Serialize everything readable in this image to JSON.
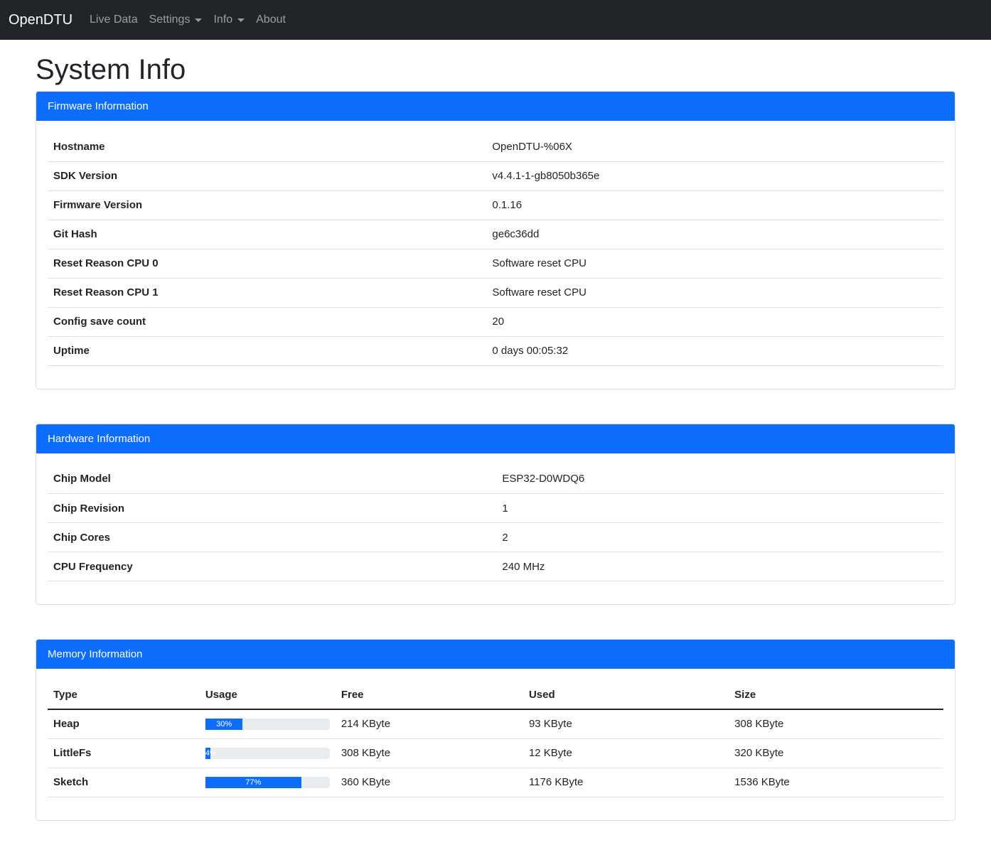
{
  "nav": {
    "brand": "OpenDTU",
    "items": [
      "Live Data",
      "Settings",
      "Info",
      "About"
    ]
  },
  "title": "System Info",
  "firmware": {
    "header": "Firmware Information",
    "rows": [
      [
        "Hostname",
        "OpenDTU-%06X"
      ],
      [
        "SDK Version",
        "v4.4.1-1-gb8050b365e"
      ],
      [
        "Firmware Version",
        "0.1.16"
      ],
      [
        "Git Hash",
        "ge6c36dd"
      ],
      [
        "Reset Reason CPU 0",
        "Software reset CPU"
      ],
      [
        "Reset Reason CPU 1",
        "Software reset CPU"
      ],
      [
        "Config save count",
        "20"
      ],
      [
        "Uptime",
        "0 days 00:05:32"
      ]
    ]
  },
  "hardware": {
    "header": "Hardware Information",
    "rows": [
      [
        "Chip Model",
        "ESP32-D0WDQ6"
      ],
      [
        "Chip Revision",
        "1"
      ],
      [
        "Chip Cores",
        "2"
      ],
      [
        "CPU Frequency",
        "240 MHz"
      ]
    ]
  },
  "memory": {
    "header": "Memory Information",
    "columns": [
      "Type",
      "Usage",
      "Free",
      "Used",
      "Size"
    ],
    "rows": [
      {
        "type": "Heap",
        "usage_percent": 30,
        "usage_label": "30%",
        "free": "214 KByte",
        "used": "93 KByte",
        "size": "308 KByte"
      },
      {
        "type": "LittleFs",
        "usage_percent": 4,
        "usage_label": "4%",
        "free": "308 KByte",
        "used": "12 KByte",
        "size": "320 KByte"
      },
      {
        "type": "Sketch",
        "usage_percent": 77,
        "usage_label": "77%",
        "free": "360 KByte",
        "used": "1176 KByte",
        "size": "1536 KByte"
      }
    ]
  },
  "colors": {
    "accent": "#0d6efd",
    "navbar": "#212529"
  }
}
